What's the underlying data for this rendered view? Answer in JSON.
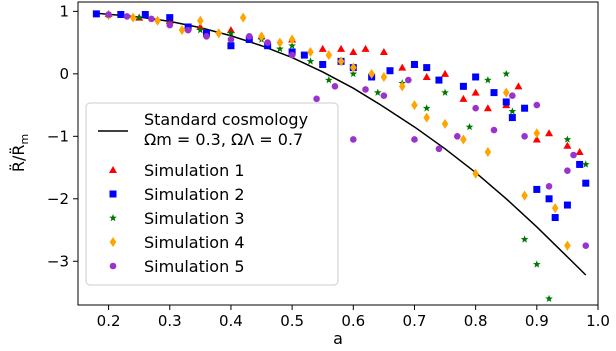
{
  "chart_data": {
    "type": "scatter",
    "xlabel": "a",
    "ylabel": "R̈/R̈_m",
    "xlim": [
      0.15,
      1.0
    ],
    "ylim": [
      -3.7,
      1.15
    ],
    "x_ticks": [
      0.2,
      0.3,
      0.4,
      0.5,
      0.6,
      0.7,
      0.8,
      0.9,
      1.0
    ],
    "x_tick_labels": [
      "0.2",
      "0.3",
      "0.4",
      "0.5",
      "0.6",
      "0.7",
      "0.8",
      "0.9",
      "1.0"
    ],
    "y_ticks": [
      1,
      0,
      -1,
      -2,
      -3
    ],
    "y_tick_labels": [
      "1",
      "0",
      "−1",
      "−2",
      "−3"
    ],
    "grid": false,
    "legend_position": "left",
    "line": {
      "name": "Standard cosmology",
      "name_line2": "Ωm = 0.3, ΩΛ = 0.7",
      "color": "#000000",
      "x": [
        0.18,
        0.25,
        0.3,
        0.35,
        0.4,
        0.45,
        0.5,
        0.55,
        0.6,
        0.65,
        0.7,
        0.75,
        0.8,
        0.85,
        0.9,
        0.95,
        0.98
      ],
      "y": [
        0.97,
        0.91,
        0.84,
        0.74,
        0.61,
        0.45,
        0.26,
        0.03,
        -0.23,
        -0.53,
        -0.85,
        -1.2,
        -1.58,
        -2.0,
        -2.45,
        -2.93,
        -3.22
      ]
    },
    "series": [
      {
        "name": "Simulation 1",
        "marker": "triangle",
        "color": "#ff0000",
        "x": [
          0.2,
          0.25,
          0.3,
          0.35,
          0.4,
          0.45,
          0.5,
          0.55,
          0.58,
          0.6,
          0.62,
          0.65,
          0.68,
          0.7,
          0.72,
          0.75,
          0.78,
          0.8,
          0.82,
          0.85,
          0.87,
          0.9,
          0.92,
          0.95,
          0.97
        ],
        "y": [
          0.96,
          0.9,
          0.85,
          0.75,
          0.7,
          0.6,
          0.55,
          0.4,
          0.4,
          0.35,
          0.4,
          0.35,
          0.1,
          0.15,
          -0.05,
          0.0,
          -0.4,
          -0.3,
          -0.55,
          -0.5,
          -0.2,
          -1.05,
          -0.95,
          -1.15,
          -1.25
        ]
      },
      {
        "name": "Simulation 2",
        "marker": "square",
        "color": "#0000ff",
        "x": [
          0.18,
          0.22,
          0.26,
          0.3,
          0.33,
          0.36,
          0.4,
          0.43,
          0.46,
          0.5,
          0.52,
          0.55,
          0.58,
          0.6,
          0.63,
          0.66,
          0.7,
          0.72,
          0.74,
          0.78,
          0.8,
          0.83,
          0.85,
          0.86,
          0.88,
          0.9,
          0.92,
          0.93,
          0.95,
          0.97,
          0.98
        ],
        "y": [
          0.96,
          0.95,
          0.95,
          0.9,
          0.75,
          0.65,
          0.45,
          0.55,
          0.45,
          0.35,
          0.3,
          0.15,
          0.2,
          0.1,
          -0.05,
          0.05,
          0.15,
          0.1,
          -0.1,
          -0.2,
          -0.05,
          -0.3,
          -0.45,
          -0.7,
          -0.55,
          -1.85,
          -2.0,
          -2.3,
          -2.1,
          -1.45,
          -1.75
        ]
      },
      {
        "name": "Simulation 3",
        "marker": "star",
        "color": "#007700",
        "x": [
          0.2,
          0.25,
          0.3,
          0.35,
          0.4,
          0.45,
          0.48,
          0.5,
          0.53,
          0.56,
          0.6,
          0.64,
          0.68,
          0.72,
          0.75,
          0.79,
          0.82,
          0.85,
          0.86,
          0.88,
          0.9,
          0.92,
          0.95,
          0.98
        ],
        "y": [
          0.94,
          0.9,
          0.8,
          0.7,
          0.65,
          0.55,
          0.4,
          0.45,
          0.2,
          -0.1,
          0.0,
          -0.3,
          -0.15,
          -0.55,
          -0.3,
          -0.85,
          -0.1,
          0.0,
          -0.6,
          -2.65,
          -3.05,
          -3.6,
          -1.05,
          -1.45
        ]
      },
      {
        "name": "Simulation 4",
        "marker": "diamond",
        "color": "#ffa500",
        "x": [
          0.2,
          0.24,
          0.28,
          0.32,
          0.35,
          0.38,
          0.42,
          0.45,
          0.48,
          0.5,
          0.53,
          0.56,
          0.58,
          0.6,
          0.63,
          0.65,
          0.68,
          0.7,
          0.72,
          0.75,
          0.78,
          0.8,
          0.82,
          0.85,
          0.88,
          0.9,
          0.93,
          0.95
        ],
        "y": [
          0.94,
          0.9,
          0.85,
          0.7,
          0.85,
          0.65,
          0.9,
          0.6,
          0.5,
          0.55,
          0.35,
          0.3,
          0.2,
          0.1,
          0.0,
          -0.05,
          -0.2,
          -0.5,
          -0.7,
          -0.8,
          -1.05,
          -1.6,
          -1.25,
          -0.3,
          -1.95,
          -0.95,
          -2.15,
          -2.75
        ]
      },
      {
        "name": "Simulation 5",
        "marker": "circle",
        "color": "#9933cc",
        "x": [
          0.2,
          0.23,
          0.27,
          0.3,
          0.33,
          0.36,
          0.4,
          0.43,
          0.46,
          0.5,
          0.54,
          0.57,
          0.6,
          0.62,
          0.65,
          0.69,
          0.7,
          0.74,
          0.77,
          0.8,
          0.83,
          0.86,
          0.88,
          0.9,
          0.92,
          0.95,
          0.96,
          0.98
        ],
        "y": [
          0.95,
          0.92,
          0.88,
          0.78,
          0.7,
          0.6,
          0.55,
          0.6,
          0.5,
          0.3,
          -0.4,
          -0.2,
          -1.05,
          -0.25,
          -0.35,
          -0.1,
          -1.05,
          -1.2,
          -1.0,
          -0.55,
          -0.9,
          -0.35,
          -1.0,
          -0.5,
          -1.8,
          -1.55,
          -1.3,
          -2.75
        ]
      }
    ]
  }
}
